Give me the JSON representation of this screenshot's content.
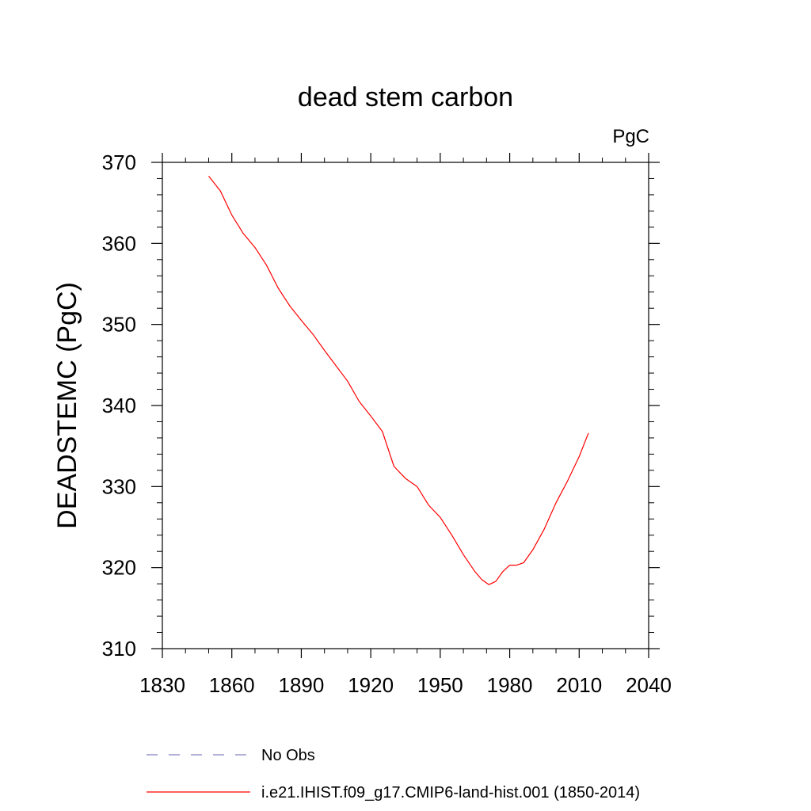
{
  "chart_data": {
    "type": "line",
    "title": "dead stem carbon",
    "units": "PgC",
    "ylabel": "DEADSTEMC  (PgC)",
    "xlabel": "",
    "xlim": [
      1830,
      2040
    ],
    "ylim": [
      310,
      370
    ],
    "xticks": [
      "1830",
      "1860",
      "1890",
      "1920",
      "1950",
      "1980",
      "2010",
      "2040"
    ],
    "yticks": [
      "310",
      "320",
      "330",
      "340",
      "350",
      "360",
      "370"
    ],
    "grid": false,
    "legend_position": "bottom",
    "series": [
      {
        "name": "No Obs",
        "color": "#8080c0",
        "style": "dashed",
        "x": [],
        "y": []
      },
      {
        "name": "i.e21.IHIST.f09_g17.CMIP6-land-hist.001 (1850-2014)",
        "color": "#ff0000",
        "style": "solid",
        "x": [
          1850,
          1855,
          1860,
          1865,
          1870,
          1875,
          1880,
          1885,
          1890,
          1895,
          1900,
          1905,
          1910,
          1915,
          1920,
          1925,
          1930,
          1935,
          1940,
          1945,
          1950,
          1955,
          1960,
          1965,
          1968,
          1971,
          1974,
          1977,
          1980,
          1983,
          1986,
          1990,
          1995,
          2000,
          2005,
          2010,
          2014
        ],
        "y": [
          368.3,
          366.5,
          363.5,
          361.2,
          359.5,
          357.3,
          354.5,
          352.3,
          350.5,
          348.8,
          346.8,
          344.9,
          343.0,
          340.5,
          338.7,
          336.8,
          332.5,
          331.0,
          330.0,
          327.7,
          326.2,
          324.0,
          321.6,
          319.5,
          318.5,
          317.9,
          318.3,
          319.5,
          320.3,
          320.3,
          320.6,
          322.2,
          324.8,
          328.0,
          330.7,
          333.7,
          336.6
        ]
      }
    ]
  }
}
